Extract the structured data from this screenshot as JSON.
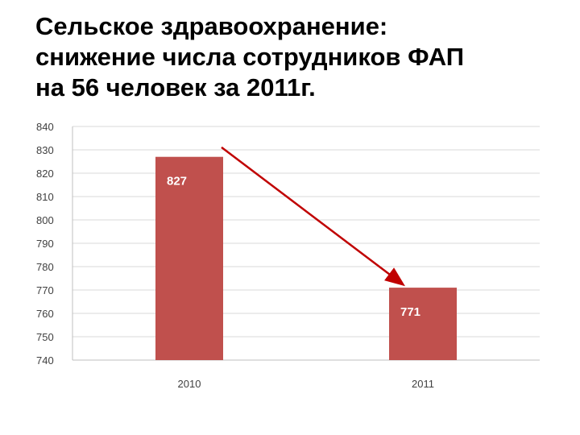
{
  "slide": {
    "title_lines": [
      "Сельское здравоохранение:",
      "снижение числа сотрудников ФАП",
      "на 56 человек за 2011г."
    ]
  },
  "chart_data": {
    "type": "bar",
    "categories": [
      "2010",
      "2011"
    ],
    "values": [
      827,
      771
    ],
    "data_labels": [
      "827",
      "771"
    ],
    "ylim": [
      740,
      840
    ],
    "yticks": [
      740,
      750,
      760,
      770,
      780,
      790,
      800,
      810,
      820,
      830,
      840
    ],
    "ytick_labels": [
      "740",
      "750",
      "760",
      "770",
      "780",
      "790",
      "800",
      "810",
      "820",
      "830",
      "840"
    ],
    "grid": true,
    "legend": "none",
    "bar_color": "#c0504d",
    "gridline_color": "#d9d9d9",
    "axis_color": "#bfbfbf",
    "arrow_color": "#c00000",
    "annotation": {
      "type": "arrow",
      "from": {
        "category": "2010",
        "value": 829
      },
      "to": {
        "category": "2011",
        "value": 772
      }
    }
  }
}
